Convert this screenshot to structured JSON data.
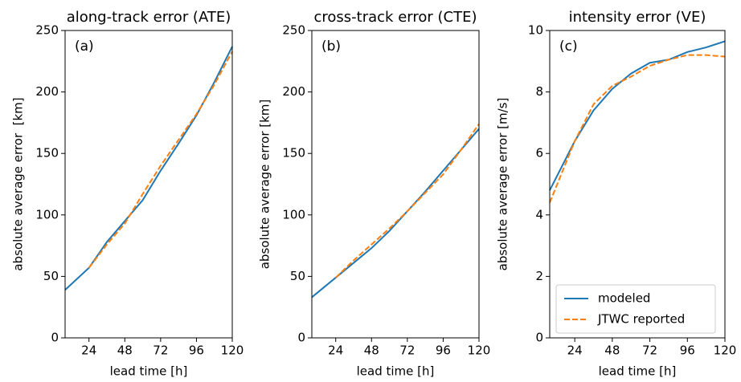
{
  "chart_data": [
    {
      "type": "line",
      "title": "along-track error (ATE)",
      "annotation": "(a)",
      "xlabel": "lead time [h]",
      "ylabel": "absolute average error  [km]",
      "x": [
        8,
        24,
        36,
        48,
        60,
        72,
        84,
        96,
        108,
        120
      ],
      "series": [
        {
          "name": "modeled",
          "color": "#1f77b4",
          "dash": false,
          "values": [
            39,
            57,
            78,
            95,
            112,
            136,
            158,
            181,
            208,
            237
          ]
        },
        {
          "name": "JTWC reported",
          "color": "#ff7f0e",
          "dash": true,
          "values": [
            null,
            57,
            76,
            93,
            117,
            140,
            161,
            182,
            206,
            233
          ]
        }
      ],
      "xlim": [
        8,
        120
      ],
      "xticks": [
        24,
        48,
        72,
        96,
        120
      ],
      "ylim": [
        0,
        250
      ],
      "yticks": [
        0,
        50,
        100,
        150,
        200,
        250
      ],
      "legend": false
    },
    {
      "type": "line",
      "title": "cross-track error (CTE)",
      "annotation": "(b)",
      "xlabel": "lead time [h]",
      "ylabel": "absolute average error [km]",
      "x": [
        8,
        24,
        36,
        48,
        60,
        72,
        84,
        96,
        108,
        120
      ],
      "series": [
        {
          "name": "modeled",
          "color": "#1f77b4",
          "dash": false,
          "values": [
            33,
            49,
            61,
            73,
            87,
            103,
            119,
            136,
            153,
            170
          ]
        },
        {
          "name": "JTWC reported",
          "color": "#ff7f0e",
          "dash": true,
          "values": [
            null,
            49,
            63,
            76,
            89,
            103,
            118,
            133,
            153,
            174
          ]
        }
      ],
      "xlim": [
        8,
        120
      ],
      "xticks": [
        24,
        48,
        72,
        96,
        120
      ],
      "ylim": [
        0,
        250
      ],
      "yticks": [
        0,
        50,
        100,
        150,
        200,
        250
      ],
      "legend": false
    },
    {
      "type": "line",
      "title": "intensity error (VE)",
      "annotation": "(c)",
      "xlabel": "lead time [h]",
      "ylabel": "absolute average error [m/s]",
      "x": [
        8,
        24,
        36,
        48,
        60,
        72,
        84,
        96,
        108,
        120
      ],
      "series": [
        {
          "name": "modeled",
          "color": "#1f77b4",
          "dash": false,
          "values": [
            4.8,
            6.4,
            7.4,
            8.1,
            8.6,
            8.95,
            9.05,
            9.3,
            9.45,
            9.65
          ]
        },
        {
          "name": "JTWC reported",
          "color": "#ff7f0e",
          "dash": true,
          "values": [
            4.4,
            6.4,
            7.6,
            8.2,
            8.5,
            8.85,
            9.05,
            9.2,
            9.2,
            9.15
          ]
        }
      ],
      "xlim": [
        8,
        120
      ],
      "xticks": [
        24,
        48,
        72,
        96,
        120
      ],
      "ylim": [
        0,
        10
      ],
      "yticks": [
        0,
        2,
        4,
        6,
        8,
        10
      ],
      "legend": "lower left"
    }
  ]
}
